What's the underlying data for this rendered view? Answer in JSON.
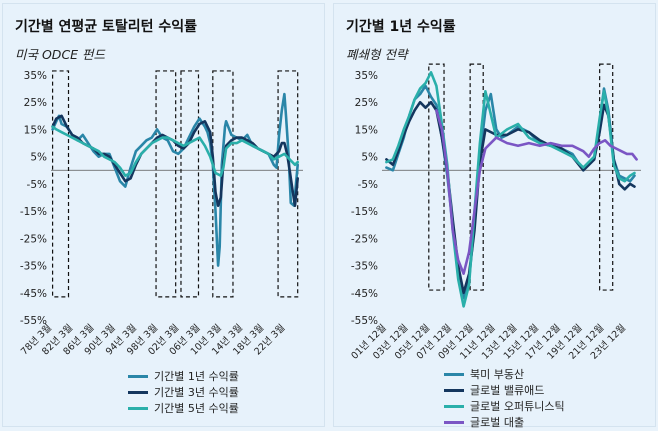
{
  "left": {
    "title": "기간별 연평균 토탈리턴 수익률",
    "subtitle": "미국 ODCE 펀드"
  },
  "right": {
    "title": "기간별 1년 수익률",
    "subtitle": "폐쇄형 전략"
  },
  "chart_data": [
    {
      "type": "line",
      "ylim": [
        -55,
        35
      ],
      "yticks": [
        35,
        25,
        15,
        5,
        -5,
        -15,
        -25,
        -35,
        -45,
        -55
      ],
      "ytick_labels": [
        "35%",
        "25%",
        "15%",
        "5%",
        "-5%",
        "-15%",
        "-25%",
        "-35%",
        "-45%",
        "-55%"
      ],
      "xlim": [
        1978,
        2025.5
      ],
      "xticks": [
        1978.17,
        1982.17,
        1986.17,
        1990.17,
        1994.17,
        1998.17,
        2002.17,
        2006.17,
        2010.17,
        2014.17,
        2018.17,
        2022.17
      ],
      "xtick_labels": [
        "78년 3월",
        "82년 3월",
        "86년 3월",
        "90년 3월",
        "94년 3월",
        "98년 3월",
        "02년 3월",
        "06년 3월",
        "10년 3월",
        "14년 3월",
        "18년 3월",
        "22년 3월"
      ],
      "highlight_periods": [
        [
          1978.3,
          1981.3
        ],
        [
          1997.8,
          2001.5
        ],
        [
          2002.5,
          2005.8
        ],
        [
          2008.5,
          2012.3
        ],
        [
          2020.8,
          2024.5
        ]
      ],
      "highlight_range": [
        -46.5,
        36.5
      ],
      "series": [
        {
          "name": "기간별 1년 수익률",
          "color": "#2a86a8",
          "x": [
            1978.3,
            1979,
            1979.5,
            1980,
            1981,
            1982,
            1983,
            1984,
            1985,
            1986,
            1987,
            1988,
            1989,
            1990,
            1991,
            1992,
            1993,
            1994,
            1995,
            1996,
            1997,
            1998,
            1999,
            2000,
            2001,
            2002,
            2003,
            2004,
            2005,
            2006,
            2007,
            2007.5,
            2008,
            2008.5,
            2009,
            2009.5,
            2009.8,
            2010.2,
            2010.8,
            2011,
            2012,
            2013,
            2014,
            2015,
            2016,
            2017,
            2018,
            2019,
            2020,
            2020.5,
            2021,
            2021.5,
            2022,
            2022.3,
            2022.8,
            2023.2,
            2023.8,
            2024.5
          ],
          "y": [
            15,
            18,
            20,
            17,
            16,
            13,
            11,
            13,
            10,
            7,
            5,
            6,
            6,
            1,
            -4,
            -6,
            1,
            7,
            9,
            11,
            12,
            15,
            12,
            11,
            7,
            6,
            8,
            12,
            16,
            19,
            16,
            14,
            10,
            2,
            -15,
            -35,
            -28,
            2,
            16,
            18,
            13,
            12,
            11,
            13,
            9,
            8,
            7,
            6,
            2,
            1,
            13,
            22,
            28,
            20,
            5,
            -12,
            -13,
            2
          ]
        },
        {
          "name": "기간별 3년 수익률",
          "color": "#14365e",
          "x": [
            1978.3,
            1979,
            1980,
            1981,
            1982,
            1983,
            1984,
            1985,
            1986,
            1987,
            1988,
            1989,
            1990,
            1991,
            1992,
            1993,
            1994,
            1995,
            1996,
            1997,
            1998,
            1999,
            2000,
            2001,
            2002,
            2003,
            2004,
            2005,
            2006,
            2007,
            2008,
            2008.5,
            2009,
            2009.5,
            2010,
            2010.5,
            2011,
            2012,
            2013,
            2014,
            2015,
            2016,
            2017,
            2018,
            2019,
            2020,
            2021,
            2021.5,
            2022,
            2022.5,
            2023,
            2023.5,
            2024,
            2024.5
          ],
          "y": [
            16,
            19,
            20,
            16,
            13,
            12,
            10,
            9,
            8,
            6,
            6,
            5,
            2,
            -1,
            -4,
            -3,
            2,
            6,
            8,
            10,
            12,
            13,
            12,
            11,
            9,
            8,
            10,
            14,
            17,
            18,
            14,
            5,
            -8,
            -13,
            -10,
            3,
            9,
            11,
            12,
            12,
            11,
            10,
            8,
            7,
            6,
            5,
            7,
            10,
            10,
            6,
            0,
            -7,
            -13,
            -3
          ]
        },
        {
          "name": "기간별 5년 수익률",
          "color": "#2aafaa",
          "x": [
            1978.3,
            1979,
            1980,
            1981,
            1982,
            1983,
            1984,
            1985,
            1986,
            1987,
            1988,
            1989,
            1990,
            1991,
            1992,
            1993,
            1994,
            1995,
            1996,
            1997,
            1998,
            1999,
            2000,
            2001,
            2002,
            2003,
            2004,
            2005,
            2006,
            2007,
            2008,
            2009,
            2010,
            2010.5,
            2011,
            2012,
            2013,
            2014,
            2015,
            2016,
            2017,
            2018,
            2019,
            2020,
            2021,
            2022,
            2023,
            2024,
            2024.5
          ],
          "y": [
            16,
            15,
            14,
            13,
            12,
            11,
            10,
            9,
            8,
            7,
            5,
            4,
            3,
            1,
            -2,
            -1,
            3,
            6,
            8,
            10,
            11,
            12,
            12,
            11,
            10,
            9,
            10,
            11,
            12,
            9,
            5,
            -1,
            -2,
            1,
            8,
            10,
            10,
            11,
            10,
            9,
            8,
            7,
            6,
            4,
            5,
            6,
            4,
            2,
            3
          ]
        }
      ]
    },
    {
      "type": "line",
      "ylim": [
        -55,
        35
      ],
      "yticks": [
        35,
        25,
        15,
        5,
        -5,
        -15,
        -25,
        -35,
        -45,
        -55
      ],
      "ytick_labels": [
        "35%",
        "25%",
        "15%",
        "5%",
        "-5%",
        "-15%",
        "-25%",
        "-35%",
        "-45%",
        "-55%"
      ],
      "xlim": [
        2001.5,
        2025.3
      ],
      "xticks": [
        2001.92,
        2003.92,
        2005.92,
        2007.92,
        2009.92,
        2011.92,
        2013.92,
        2015.92,
        2017.92,
        2019.92,
        2021.92,
        2023.92
      ],
      "xtick_labels": [
        "01년 12월",
        "03년 12월",
        "05년 12월",
        "07년 12월",
        "09년 12월",
        "11년 12월",
        "13년 12월",
        "15년 12월",
        "17년 12월",
        "19년 12월",
        "21년 12월",
        "23년 12월"
      ],
      "highlight_periods": [
        [
          2005.8,
          2007.2
        ],
        [
          2009.6,
          2010.8
        ],
        [
          2021.5,
          2022.7
        ]
      ],
      "highlight_range": [
        -44,
        39
      ],
      "series": [
        {
          "name": "북미 부동산",
          "color": "#2a86a8",
          "x": [
            2001.9,
            2002.5,
            2003,
            2003.5,
            2004,
            2004.5,
            2005,
            2005.5,
            2006,
            2006.5,
            2007,
            2007.5,
            2008,
            2008.5,
            2009,
            2009.5,
            2010,
            2010.5,
            2011,
            2011.5,
            2012,
            2012.5,
            2013,
            2014,
            2015,
            2016,
            2017,
            2018,
            2019,
            2020,
            2021,
            2021.5,
            2021.9,
            2022.3,
            2022.8,
            2023.3,
            2023.8,
            2024.3,
            2024.7
          ],
          "y": [
            1,
            0,
            6,
            12,
            20,
            26,
            28,
            31,
            27,
            24,
            12,
            -2,
            -20,
            -38,
            -47,
            -40,
            -20,
            5,
            22,
            28,
            15,
            12,
            13,
            16,
            14,
            10,
            9,
            8,
            6,
            0,
            4,
            18,
            30,
            22,
            4,
            -2,
            -3,
            -4,
            -2
          ]
        },
        {
          "name": "글로벌 밸류애드",
          "color": "#14365e",
          "x": [
            2001.9,
            2002.5,
            2003,
            2003.5,
            2004,
            2004.5,
            2005,
            2005.5,
            2006,
            2006.5,
            2007,
            2007.5,
            2008,
            2008.5,
            2009,
            2009.5,
            2010,
            2010.5,
            2011,
            2012,
            2013,
            2014,
            2015,
            2016,
            2017,
            2018,
            2019,
            2020,
            2021,
            2021.5,
            2021.9,
            2022.3,
            2022.8,
            2023.3,
            2023.8,
            2024.3,
            2024.7
          ],
          "y": [
            4,
            2,
            7,
            13,
            18,
            22,
            25,
            23,
            25,
            22,
            12,
            0,
            -18,
            -35,
            -45,
            -38,
            -22,
            3,
            15,
            13,
            13,
            15,
            14,
            11,
            9,
            8,
            5,
            0,
            4,
            14,
            24,
            20,
            4,
            -5,
            -7,
            -5,
            -6
          ]
        },
        {
          "name": "글로벌 오퍼튜니스틱",
          "color": "#2aafaa",
          "x": [
            2001.9,
            2002.5,
            2003,
            2003.5,
            2004,
            2004.5,
            2005,
            2005.5,
            2006,
            2006.5,
            2007,
            2007.5,
            2008,
            2008.5,
            2009,
            2009.5,
            2010,
            2010.5,
            2011,
            2012,
            2013,
            2014,
            2015,
            2016,
            2017,
            2018,
            2019,
            2020,
            2021,
            2021.5,
            2021.9,
            2022.3,
            2022.8,
            2023.3,
            2023.8,
            2024.3,
            2024.7
          ],
          "y": [
            3,
            4,
            9,
            15,
            20,
            26,
            30,
            32,
            36,
            31,
            17,
            2,
            -22,
            -40,
            -50,
            -42,
            -15,
            10,
            29,
            12,
            15,
            17,
            12,
            10,
            9,
            7,
            5,
            1,
            5,
            19,
            29,
            20,
            2,
            -3,
            -4,
            -2,
            -1
          ]
        },
        {
          "name": "글로벌 대출",
          "color": "#7b56c4",
          "x": [
            2006.5,
            2007,
            2007.5,
            2008,
            2008.5,
            2009,
            2009.5,
            2010,
            2010.5,
            2011,
            2011.5,
            2012,
            2013,
            2014,
            2015,
            2016,
            2017,
            2018,
            2019,
            2020,
            2020.5,
            2021,
            2021.5,
            2022,
            2022.5,
            2023,
            2023.5,
            2024,
            2024.5,
            2024.9
          ],
          "y": [
            22,
            15,
            0,
            -22,
            -33,
            -38,
            -30,
            -15,
            0,
            8,
            10,
            12,
            10,
            9,
            10,
            9,
            10,
            9,
            9,
            7,
            5,
            8,
            10,
            11,
            9,
            8,
            7,
            6,
            6,
            4
          ]
        }
      ]
    }
  ]
}
